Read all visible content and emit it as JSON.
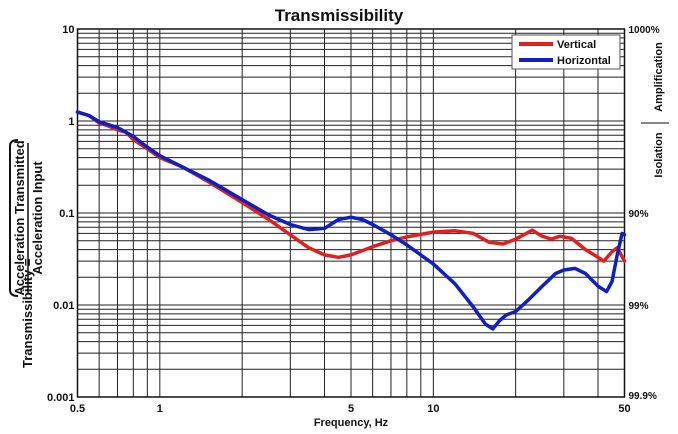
{
  "chart_data": {
    "type": "line",
    "title": "Transmissibility",
    "xlabel": "Frequency, Hz",
    "ylabel": {
      "prefix": "Transmissibility =",
      "numerator": "Acceleration Transmitted",
      "denominator": "Acceleration Input"
    },
    "xscale": "log",
    "yscale": "log",
    "xlim": [
      0.5,
      50
    ],
    "ylim": [
      0.001,
      10
    ],
    "grid": true,
    "x_ticks": [
      {
        "v": 0.5,
        "label": "0.5"
      },
      {
        "v": 1,
        "label": "1"
      },
      {
        "v": 5,
        "label": "5"
      },
      {
        "v": 10,
        "label": "10"
      },
      {
        "v": 50,
        "label": "50"
      }
    ],
    "y_ticks": [
      {
        "v": 10,
        "label": "10"
      },
      {
        "v": 1,
        "label": "1"
      },
      {
        "v": 0.1,
        "label": "0.1"
      },
      {
        "v": 0.01,
        "label": "0.01"
      },
      {
        "v": 0.001,
        "label": "0.001"
      }
    ],
    "right_ticks": [
      {
        "v": 10,
        "label": "1000%"
      },
      {
        "v": 0.1,
        "label": "90%"
      },
      {
        "v": 0.01,
        "label": "99%"
      },
      {
        "v": 0.001,
        "label": "99.9%"
      }
    ],
    "right_labels": {
      "upper": "Amplification",
      "lower": "Isolation"
    },
    "legend_position": "top-right",
    "series": [
      {
        "name": "Vertical",
        "color": "#e02020",
        "points": [
          [
            0.5,
            1.25
          ],
          [
            0.55,
            1.15
          ],
          [
            0.6,
            0.95
          ],
          [
            0.65,
            0.88
          ],
          [
            0.7,
            0.8
          ],
          [
            0.75,
            0.76
          ],
          [
            0.8,
            0.63
          ],
          [
            0.9,
            0.5
          ],
          [
            1,
            0.4
          ],
          [
            1.2,
            0.32
          ],
          [
            1.5,
            0.22
          ],
          [
            2,
            0.13
          ],
          [
            2.5,
            0.085
          ],
          [
            3,
            0.058
          ],
          [
            3.5,
            0.042
          ],
          [
            4,
            0.035
          ],
          [
            4.5,
            0.033
          ],
          [
            5,
            0.035
          ],
          [
            6,
            0.043
          ],
          [
            7,
            0.05
          ],
          [
            8,
            0.055
          ],
          [
            10,
            0.062
          ],
          [
            12,
            0.064
          ],
          [
            14,
            0.06
          ],
          [
            16,
            0.048
          ],
          [
            18,
            0.046
          ],
          [
            20,
            0.052
          ],
          [
            23,
            0.065
          ],
          [
            25,
            0.056
          ],
          [
            27,
            0.052
          ],
          [
            29,
            0.056
          ],
          [
            32,
            0.053
          ],
          [
            36,
            0.04
          ],
          [
            40,
            0.033
          ],
          [
            42,
            0.03
          ],
          [
            45,
            0.038
          ],
          [
            47,
            0.042
          ],
          [
            50,
            0.03
          ]
        ]
      },
      {
        "name": "Horizontal",
        "color": "#1020c0",
        "points": [
          [
            0.5,
            1.25
          ],
          [
            0.55,
            1.15
          ],
          [
            0.6,
            0.98
          ],
          [
            0.7,
            0.85
          ],
          [
            0.8,
            0.68
          ],
          [
            0.9,
            0.52
          ],
          [
            1,
            0.42
          ],
          [
            1.5,
            0.23
          ],
          [
            2,
            0.14
          ],
          [
            2.5,
            0.095
          ],
          [
            3,
            0.075
          ],
          [
            3.5,
            0.066
          ],
          [
            4,
            0.068
          ],
          [
            4.5,
            0.085
          ],
          [
            5,
            0.09
          ],
          [
            5.5,
            0.085
          ],
          [
            6,
            0.075
          ],
          [
            7,
            0.058
          ],
          [
            8,
            0.045
          ],
          [
            10,
            0.028
          ],
          [
            12,
            0.017
          ],
          [
            14,
            0.0095
          ],
          [
            15.5,
            0.0062
          ],
          [
            16.5,
            0.0055
          ],
          [
            17.5,
            0.0068
          ],
          [
            18.5,
            0.0078
          ],
          [
            20,
            0.0085
          ],
          [
            22,
            0.011
          ],
          [
            25,
            0.016
          ],
          [
            28,
            0.022
          ],
          [
            30,
            0.024
          ],
          [
            33,
            0.025
          ],
          [
            36,
            0.022
          ],
          [
            40,
            0.016
          ],
          [
            43,
            0.014
          ],
          [
            45,
            0.018
          ],
          [
            47,
            0.035
          ],
          [
            49,
            0.06
          ],
          [
            50,
            0.058
          ]
        ]
      }
    ]
  }
}
